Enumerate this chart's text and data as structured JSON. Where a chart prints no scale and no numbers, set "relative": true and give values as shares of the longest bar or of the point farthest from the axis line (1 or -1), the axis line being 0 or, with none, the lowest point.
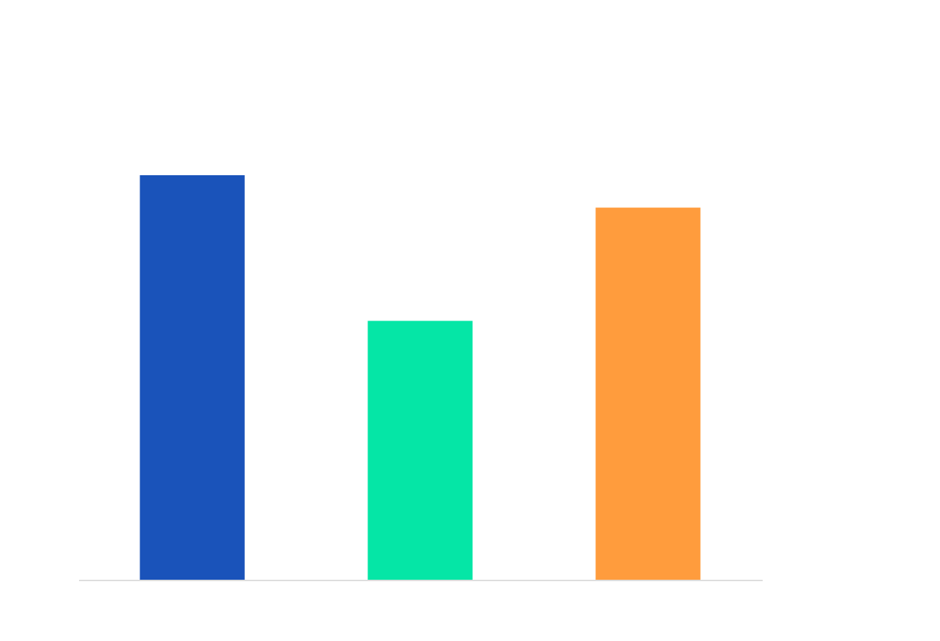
{
  "chart_data": {
    "type": "bar",
    "relative": true,
    "categories": [
      null,
      null,
      null
    ],
    "values": [
      1,
      0.64,
      0.92
    ],
    "colors": [
      "#1a53ba",
      "#05e6a6",
      "#ff9c3d"
    ]
  }
}
